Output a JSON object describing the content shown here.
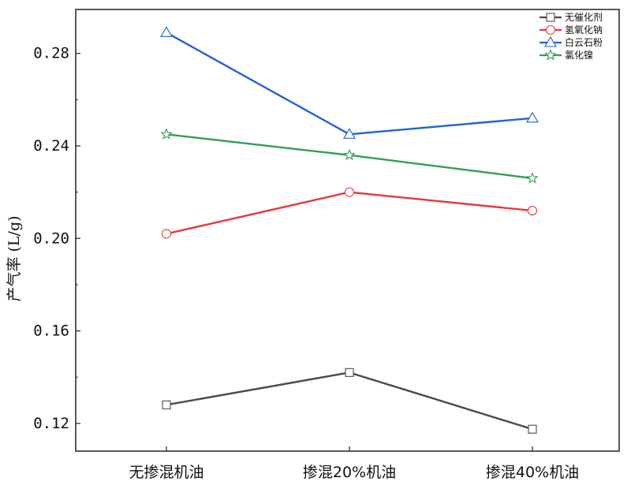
{
  "chart_data": {
    "type": "line",
    "title": "",
    "xlabel": "",
    "ylabel": "产气率 (L/g)",
    "categories": [
      "无掺混机油",
      "掺混20%机油",
      "掺混40%机油"
    ],
    "ylim": [
      0.108,
      0.299
    ],
    "yticks": [
      0.12,
      0.16,
      0.2,
      0.24,
      0.28
    ],
    "ytick_labels": [
      "0.12",
      "0.16",
      "0.20",
      "0.24",
      "0.28"
    ],
    "grid": false,
    "legend_position": "top-right",
    "series": [
      {
        "name": "无催化剂",
        "values": [
          0.128,
          0.142,
          0.1175
        ],
        "color": "#4a4a4a",
        "marker": "square"
      },
      {
        "name": "氢氧化钠",
        "values": [
          0.202,
          0.22,
          0.212
        ],
        "color": "#e8393a",
        "marker": "circle"
      },
      {
        "name": "白云石粉",
        "values": [
          0.289,
          0.245,
          0.252
        ],
        "color": "#1f63d6",
        "marker": "triangle"
      },
      {
        "name": "氯化镍",
        "values": [
          0.245,
          0.236,
          0.226
        ],
        "color": "#2e9e57",
        "marker": "star"
      }
    ]
  }
}
